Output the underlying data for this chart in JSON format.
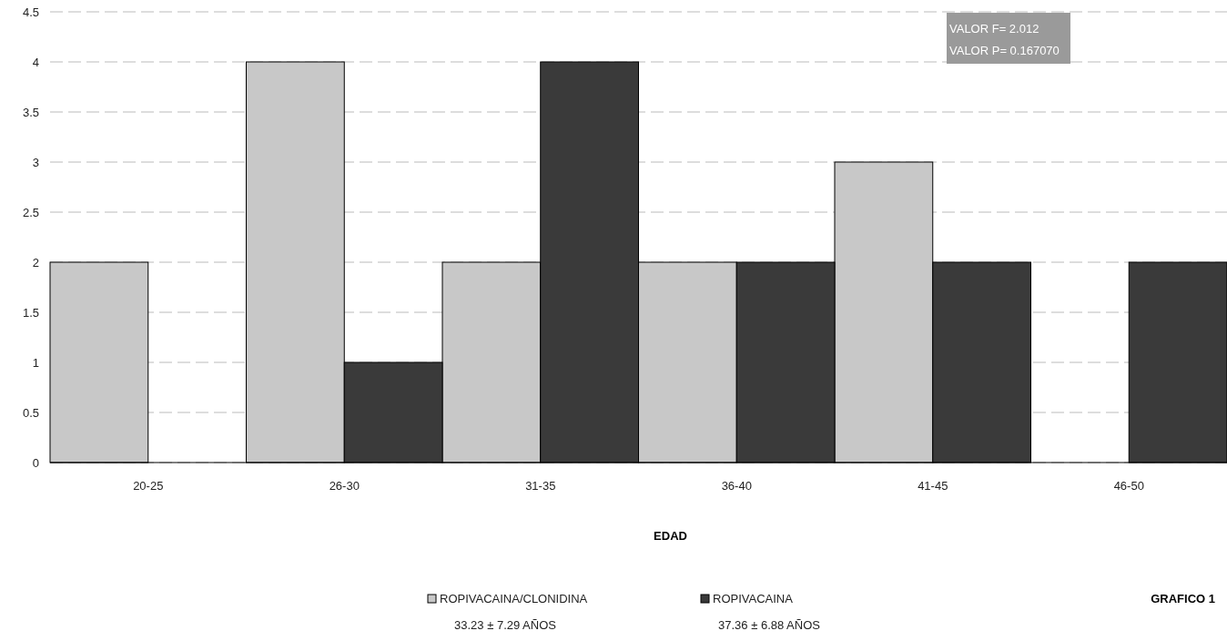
{
  "chart_data": {
    "type": "bar",
    "xlabel": "EDAD",
    "categories": [
      "20-25",
      "26-30",
      "31-35",
      "36-40",
      "41-45",
      "46-50"
    ],
    "series": [
      {
        "name": "ROPIVACAINA/CLONIDINA",
        "color": "#c8c8c8",
        "values": [
          2,
          4,
          2,
          2,
          3,
          null
        ]
      },
      {
        "name": "ROPIVACAINA",
        "color": "#3a3a3a",
        "values": [
          null,
          1,
          4,
          2,
          2,
          2
        ]
      }
    ],
    "ylim": [
      0,
      4.5
    ],
    "yticks": [
      0,
      0.5,
      1,
      1.5,
      2,
      2.5,
      3,
      3.5,
      4,
      4.5
    ],
    "grid": "y",
    "legend": "bottom",
    "annotations": [
      "VALOR F= 2.012",
      "VALOR P= 0.167070",
      "GRAFICO 1",
      "33.23 ± 7.29 AÑOS",
      "37.36 ± 6.88 AÑOS"
    ]
  }
}
